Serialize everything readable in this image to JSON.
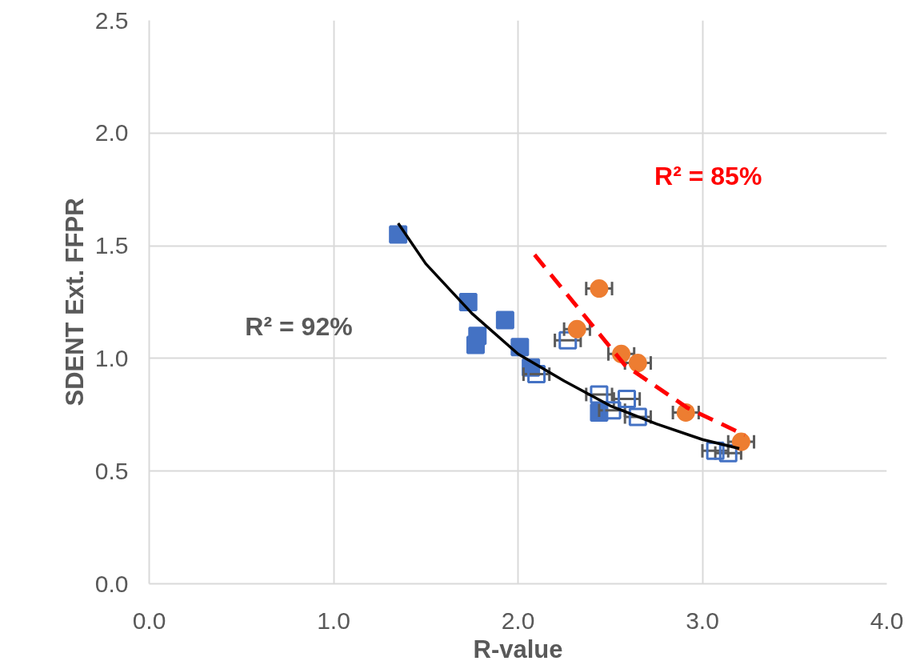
{
  "chart_data": {
    "type": "scatter",
    "xlabel": "R-value",
    "ylabel": "SDENT Ext. FFPR",
    "xlim": [
      0,
      4
    ],
    "xticks": [
      {
        "value": 0,
        "label": "0.0"
      },
      {
        "value": 1,
        "label": "1.0"
      },
      {
        "value": 2,
        "label": "2.0"
      },
      {
        "value": 3,
        "label": "3.0"
      },
      {
        "value": 4,
        "label": "4.0"
      }
    ],
    "ylim": [
      0,
      2.5
    ],
    "yticks": [
      {
        "value": 0,
        "label": "0.0"
      },
      {
        "value": 0.5,
        "label": "0.5"
      },
      {
        "value": 1,
        "label": "1.0"
      },
      {
        "value": 1.5,
        "label": "1.5"
      },
      {
        "value": 2,
        "label": "2.0"
      },
      {
        "value": 2.5,
        "label": "2.5"
      }
    ],
    "grid": true,
    "series": [
      {
        "color": "#4472c4",
        "marker": "square",
        "x": [
          1.35,
          1.73,
          1.78,
          1.77,
          1.93,
          2.01,
          2.07,
          2.44
        ],
        "values": [
          1.55,
          1.25,
          1.1,
          1.06,
          1.17,
          1.05,
          0.96,
          0.76
        ]
      },
      {
        "color": "#4472c4",
        "marker": "square",
        "x": [
          2.27,
          2.1,
          2.44,
          2.51,
          2.59,
          2.65,
          3.07,
          3.14
        ],
        "values": [
          1.08,
          0.93,
          0.84,
          0.77,
          0.82,
          0.74,
          0.59,
          0.58
        ],
        "xerrors": [
          0.07,
          0.07,
          0.07,
          0.07,
          0.07,
          0.07,
          0.07,
          0.07
        ]
      },
      {
        "color": "#ed7d31",
        "marker": "circle",
        "x": [
          2.44,
          2.32,
          2.56,
          2.65,
          2.91,
          3.21
        ],
        "values": [
          1.31,
          1.13,
          1.02,
          0.98,
          0.76,
          0.63
        ],
        "xerrors": [
          0.07,
          0.07,
          0.07,
          0.07,
          0.07,
          0.07
        ]
      },
      {
        "type": "line",
        "color": "#000000",
        "line_style": "solid",
        "x": [
          1.35,
          1.5,
          1.75,
          2.0,
          2.25,
          2.5,
          2.75,
          3.0,
          3.2
        ],
        "values": [
          1.6,
          1.42,
          1.2,
          1.02,
          0.9,
          0.79,
          0.71,
          0.64,
          0.6
        ]
      },
      {
        "type": "line",
        "color": "#ff0000",
        "line_style": "dashed",
        "x": [
          2.09,
          2.32,
          2.58,
          2.92,
          3.23
        ],
        "values": [
          1.46,
          1.23,
          0.97,
          0.78,
          0.66
        ]
      }
    ],
    "annotations": [
      "R² = 92%",
      "R² = 85%"
    ]
  }
}
